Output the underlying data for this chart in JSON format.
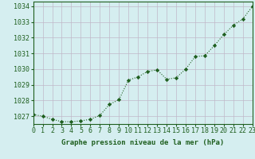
{
  "x": [
    0,
    1,
    2,
    3,
    4,
    5,
    6,
    7,
    8,
    9,
    10,
    11,
    12,
    13,
    14,
    15,
    16,
    17,
    18,
    19,
    20,
    21,
    22,
    23
  ],
  "y": [
    1027.1,
    1027.0,
    1026.8,
    1026.65,
    1026.65,
    1026.7,
    1026.8,
    1027.05,
    1027.75,
    1028.05,
    1029.3,
    1029.5,
    1029.85,
    1029.95,
    1029.35,
    1029.45,
    1030.0,
    1030.8,
    1030.85,
    1031.5,
    1032.2,
    1032.8,
    1033.2,
    1034.0
  ],
  "line_color": "#1f5f1f",
  "marker_color": "#1f5f1f",
  "bg_color": "#d5eef0",
  "plot_bg_color": "#d5eef0",
  "grid_color": "#c0b8c8",
  "ylabel_ticks": [
    1027,
    1028,
    1029,
    1030,
    1031,
    1032,
    1033,
    1034
  ],
  "xlabel": "Graphe pression niveau de la mer (hPa)",
  "xlim": [
    0,
    23
  ],
  "ylim": [
    1026.5,
    1034.3
  ],
  "title_color": "#1f5f1f",
  "xlabel_fontsize": 6.5,
  "tick_fontsize": 6.0
}
